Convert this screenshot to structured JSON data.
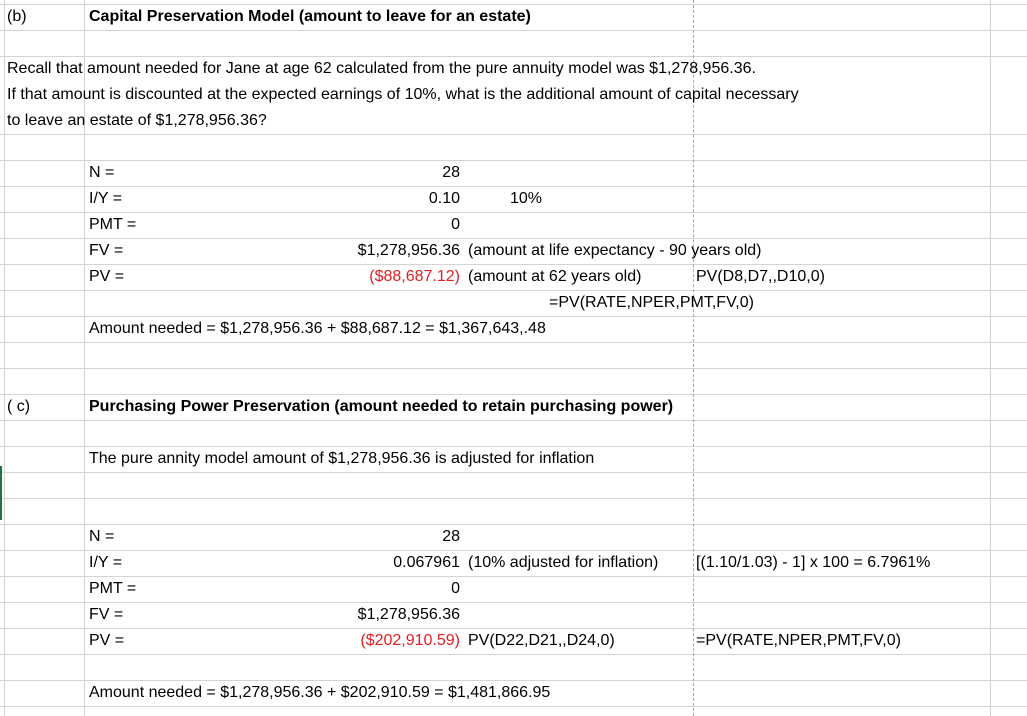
{
  "b": {
    "label": "(b)",
    "title": "Capital Preservation Model (amount to leave for an estate)",
    "para": [
      "Recall that amount needed for Jane at age 62 calculated from the pure annuity model was $1,278,956.36.",
      "If that amount is discounted at the expected earnings of 10%, what is the additional amount of capital necessary",
      "to leave an estate of $1,278,956.36?"
    ],
    "rows": [
      {
        "label": "N =",
        "value": "28",
        "note": "",
        "extra": ""
      },
      {
        "label": "I/Y =",
        "value": "0.10",
        "note": "10%",
        "extra": ""
      },
      {
        "label": "PMT =",
        "value": "0",
        "note": "",
        "extra": ""
      },
      {
        "label": "FV =",
        "value": "$1,278,956.36",
        "note": "(amount at life expectancy - 90 years old)",
        "extra": ""
      },
      {
        "label": "PV =",
        "value": "($88,687.12)",
        "note": "(amount at 62 years old)",
        "extra": "PV(D8,D7,,D10,0)"
      }
    ],
    "formula": "=PV(RATE,NPER,PMT,FV,0)",
    "amount_needed": "Amount needed  = $1,278,956.36  + $88,687.12 = $1,367,643,.48"
  },
  "c": {
    "label": "( c)",
    "title": "Purchasing Power Preservation (amount needed to retain purchasing power)",
    "para": "The pure annity model amount of $1,278,956.36 is adjusted for inflation",
    "rows": [
      {
        "label": "N =",
        "value": "28",
        "note": "",
        "extra": ""
      },
      {
        "label": "I/Y =",
        "value": "0.067961",
        "note": "(10% adjusted for inflation)",
        "extra": "[(1.10/1.03) - 1] x 100 = 6.7961%"
      },
      {
        "label": "PMT =",
        "value": "0",
        "note": "",
        "extra": ""
      },
      {
        "label": "FV =",
        "value": "$1,278,956.36",
        "note": "",
        "extra": ""
      },
      {
        "label": "PV =",
        "value": "($202,910.59)",
        "note": "PV(D22,D21,,D24,0)",
        "extra": "=PV(RATE,NPER,PMT,FV,0)"
      }
    ],
    "amount_needed": "Amount needed = $1,278,956.36 + $202,910.59 = $1,481,866.95"
  },
  "colors": {
    "negative": "#e02020",
    "gridline": "#d4d4d4",
    "page_break": "#a8a8a8",
    "active_cell": "#217346"
  }
}
